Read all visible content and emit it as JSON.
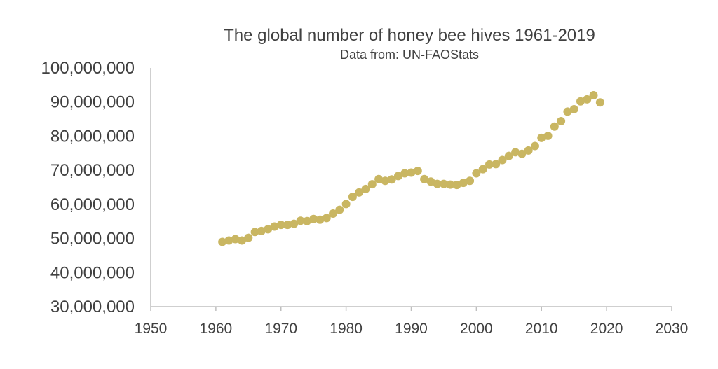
{
  "chart_data": {
    "type": "scatter",
    "title": "The global number of honey bee hives 1961-2019",
    "subtitle": "Data from: UN-FAOStats",
    "xlabel": "",
    "ylabel": "",
    "xlim": [
      1950,
      2030
    ],
    "ylim": [
      30000000,
      100000000
    ],
    "x_ticks": [
      1950,
      1960,
      1970,
      1980,
      1990,
      2000,
      2010,
      2020,
      2030
    ],
    "x_tick_labels": [
      "1950",
      "1960",
      "1970",
      "1980",
      "1990",
      "2000",
      "2010",
      "2020",
      "2030"
    ],
    "y_ticks": [
      30000000,
      40000000,
      50000000,
      60000000,
      70000000,
      80000000,
      90000000,
      100000000
    ],
    "y_tick_labels": [
      "30,000,000",
      "40,000,000",
      "50,000,000",
      "60,000,000",
      "70,000,000",
      "80,000,000",
      "90,000,000",
      "100,000,000"
    ],
    "grid": false,
    "legend": "none",
    "marker_color": "#c9b662",
    "axis_color": "#bfbfbf",
    "text_color": "#404040",
    "x": [
      1961,
      1962,
      1963,
      1964,
      1965,
      1966,
      1967,
      1968,
      1969,
      1970,
      1971,
      1972,
      1973,
      1974,
      1975,
      1976,
      1977,
      1978,
      1979,
      1980,
      1981,
      1982,
      1983,
      1984,
      1985,
      1986,
      1987,
      1988,
      1989,
      1990,
      1991,
      1992,
      1993,
      1994,
      1995,
      1996,
      1997,
      1998,
      1999,
      2000,
      2001,
      2002,
      2003,
      2004,
      2005,
      2006,
      2007,
      2008,
      2009,
      2010,
      2011,
      2012,
      2013,
      2014,
      2015,
      2016,
      2017,
      2018,
      2019
    ],
    "y": [
      49000000,
      49400000,
      49800000,
      49400000,
      50200000,
      51900000,
      52200000,
      52700000,
      53500000,
      54000000,
      54000000,
      54300000,
      55200000,
      55100000,
      55700000,
      55500000,
      56000000,
      57300000,
      58400000,
      60100000,
      62200000,
      63500000,
      64500000,
      65900000,
      67400000,
      66900000,
      67300000,
      68300000,
      69100000,
      69300000,
      69800000,
      67400000,
      66700000,
      66000000,
      66000000,
      65800000,
      65700000,
      66300000,
      66900000,
      69100000,
      70300000,
      71700000,
      71800000,
      73000000,
      74200000,
      75300000,
      74800000,
      75800000,
      77100000,
      79500000,
      80100000,
      82800000,
      84400000,
      87200000,
      87900000,
      90200000,
      90800000,
      92000000,
      89900000
    ]
  }
}
